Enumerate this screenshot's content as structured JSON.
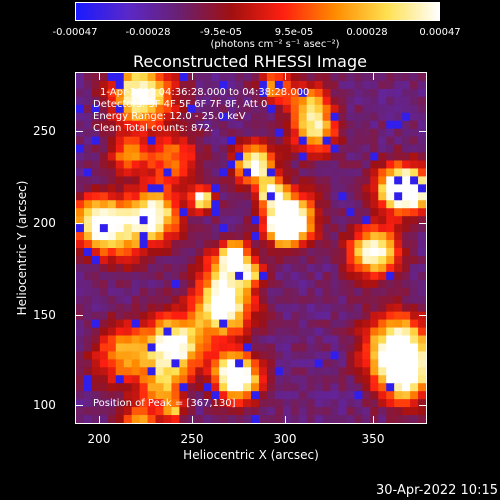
{
  "colorbar": {
    "ticks": [
      "-0.00047",
      "-0.00028",
      "-9.5e-05",
      "9.5e-05",
      "0.00028",
      "0.00047"
    ],
    "units": "(photons cm⁻² s⁻¹ asec⁻²)",
    "colors": [
      "#1a1aff",
      "#5a28c8",
      "#6a2070",
      "#a01010",
      "#ff2010",
      "#ff8c00",
      "#ffe050",
      "#ffffff"
    ]
  },
  "title": "Reconstructed RHESSI Image",
  "info": {
    "time_range": "1-Apr-2003 04:36:28.000 to 04:38:28.000",
    "detectors": "Detectors: 3F 4F 5F 6F 7F 8F, Att 0",
    "energy": "Energy Range: 12.0 - 25.0 keV",
    "clean": "Clean     Total counts: 872.",
    "peak": "Position of Peak = [367,130]"
  },
  "axes": {
    "xlabel": "Heliocentric X (arcsec)",
    "ylabel": "Heliocentric Y (arcsec)",
    "xticks": [
      "200",
      "250",
      "300",
      "350"
    ],
    "yticks": [
      "250",
      "200",
      "150",
      "100"
    ]
  },
  "footer": "30-Apr-2022 10:15"
}
